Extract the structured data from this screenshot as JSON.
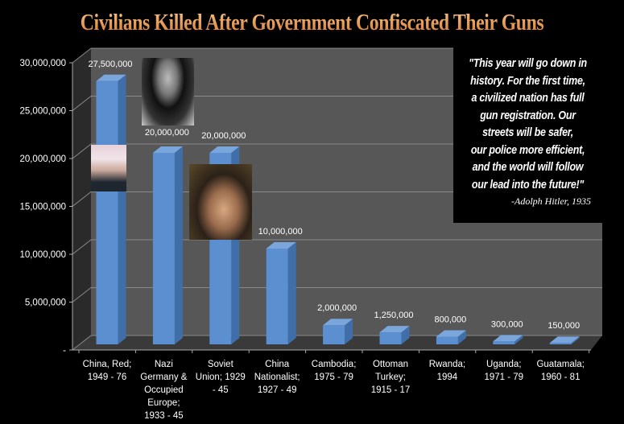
{
  "chart_data": {
    "type": "bar",
    "title": "Civilians Killed After Government Confiscated Their Guns",
    "categories": [
      "China, Red;\n1949 - 76",
      "Nazi\nGermany &\nOccupied\nEurope;\n1933 - 45",
      "Soviet\nUnion; 1929\n- 45",
      "China\nNationalist;\n1927 - 49",
      "Cambodia;\n1975 - 79",
      "Ottoman\nTurkey;\n1915 - 17",
      "Rwanda;\n1994",
      "Uganda;\n1971 - 79",
      "Guatamala;\n1960 - 81"
    ],
    "values": [
      27500000,
      20000000,
      20000000,
      10000000,
      2000000,
      1250000,
      800000,
      300000,
      150000
    ],
    "data_labels": [
      "27,500,000",
      "20,000,000",
      "20,000,000",
      "10,000,000",
      "2,000,000",
      "1,250,000",
      "800,000",
      "300,000",
      "150,000"
    ],
    "ylim": [
      0,
      30000000
    ],
    "y_ticks": [
      "-",
      "5,000,000",
      "10,000,000",
      "15,000,000",
      "20,000,000",
      "25,000,000",
      "30,000,000"
    ],
    "grid": true,
    "style": "3d-column",
    "bar_color": "#5b8fd0",
    "title_color": "#e8974a"
  },
  "quote": {
    "text": "\"This year will go down in\nhistory. For the first time,\na civilized nation has full\ngun registration. Our\nstreets will be safer,\nour police more efficient,\nand the world will follow\nour lead into the future!\"",
    "attribution": "-Adolph Hitler, 1935"
  }
}
